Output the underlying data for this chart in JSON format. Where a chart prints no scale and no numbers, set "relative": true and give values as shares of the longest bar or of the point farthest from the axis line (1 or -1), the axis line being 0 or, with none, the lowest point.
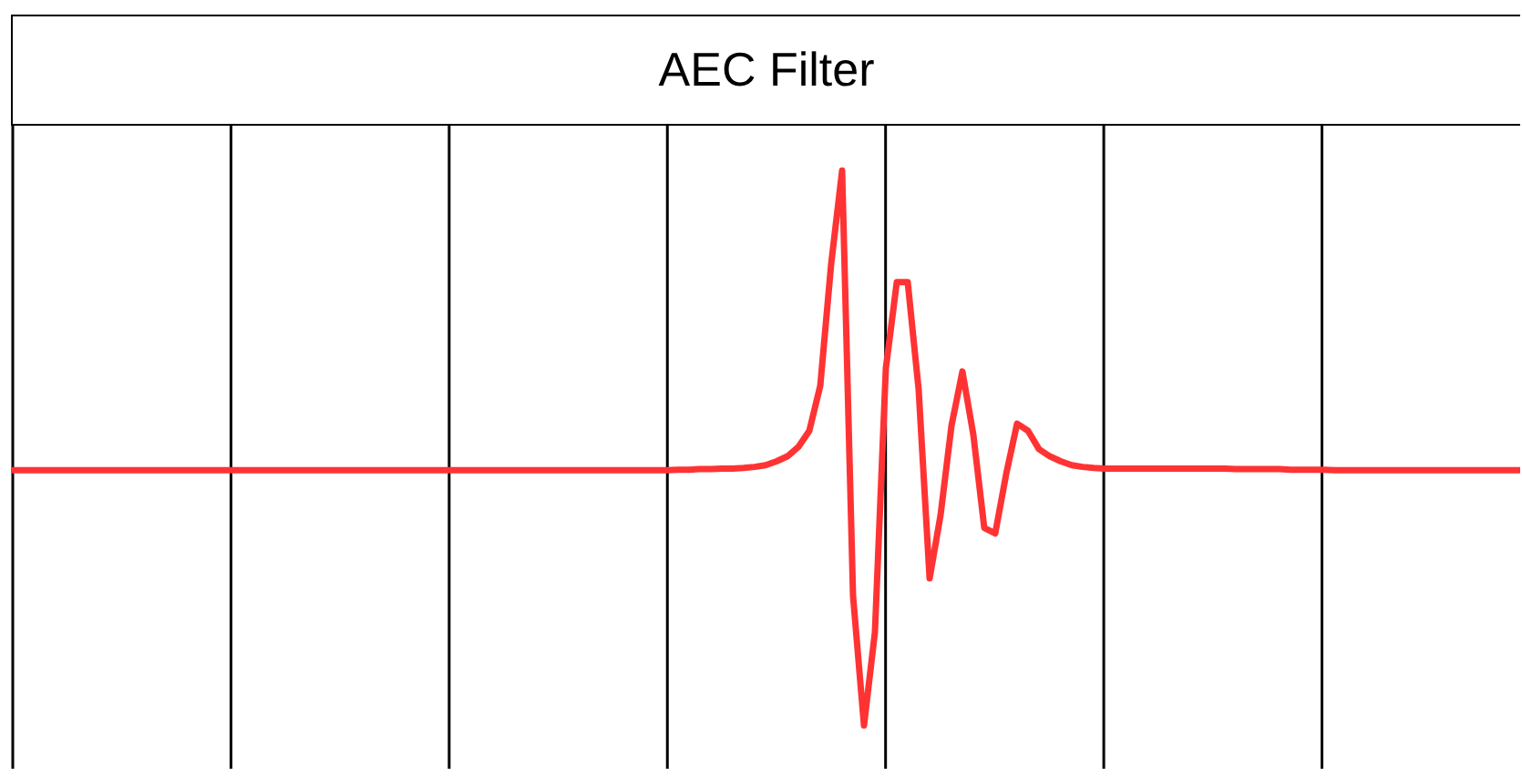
{
  "chart_data": {
    "type": "line",
    "title": "AEC Filter",
    "relative": true,
    "grid": "x",
    "legend": false,
    "marker": "none",
    "line_style": "solid",
    "categories": [
      null,
      null,
      null,
      null,
      null,
      null,
      null,
      null,
      null,
      null,
      null,
      null,
      null,
      null,
      null,
      null,
      null,
      null,
      null,
      null,
      null,
      null,
      null,
      null,
      null,
      null,
      null,
      null,
      null,
      null,
      null,
      null,
      null,
      null,
      null,
      null,
      null,
      null,
      null,
      null,
      null,
      null,
      null,
      null,
      null,
      null,
      null,
      null,
      null,
      null,
      null,
      null,
      null,
      null,
      null,
      null,
      null,
      null,
      null,
      null,
      null,
      null,
      null,
      null,
      null,
      null,
      null,
      null,
      null,
      null,
      null,
      null,
      null,
      null,
      null,
      null,
      null,
      null,
      null,
      null,
      null,
      null,
      null,
      null,
      null,
      null,
      null,
      null,
      null,
      null,
      null,
      null,
      null,
      null,
      null,
      null,
      null,
      null,
      null,
      null,
      null,
      null,
      null,
      null,
      null,
      null,
      null,
      null,
      null,
      null,
      null,
      null,
      null,
      null,
      null,
      null,
      null,
      null,
      null,
      null,
      null,
      null,
      null,
      null,
      null,
      null,
      null,
      null,
      null,
      null,
      null,
      null,
      null,
      null,
      null,
      null,
      null,
      null,
      null
    ],
    "series": [
      {
        "color": "#ff3333",
        "values": [
          0.46,
          0.46,
          0.46,
          0.46,
          0.46,
          0.46,
          0.46,
          0.46,
          0.46,
          0.46,
          0.46,
          0.46,
          0.46,
          0.46,
          0.46,
          0.46,
          0.46,
          0.46,
          0.46,
          0.46,
          0.46,
          0.46,
          0.46,
          0.46,
          0.46,
          0.46,
          0.46,
          0.46,
          0.46,
          0.46,
          0.46,
          0.46,
          0.46,
          0.46,
          0.46,
          0.46,
          0.46,
          0.46,
          0.46,
          0.46,
          0.46,
          0.46,
          0.46,
          0.46,
          0.46,
          0.46,
          0.46,
          0.46,
          0.46,
          0.46,
          0.46,
          0.46,
          0.46,
          0.46,
          0.46,
          0.46,
          0.46,
          0.46,
          0.46,
          0.46,
          0.46,
          0.461,
          0.461,
          0.462,
          0.462,
          0.463,
          0.463,
          0.464,
          0.466,
          0.469,
          0.476,
          0.485,
          0.502,
          0.531,
          0.612,
          0.832,
          1,
          0.233,
          0,
          0.168,
          0.644,
          0.799,
          0.799,
          0.605,
          0.265,
          0.379,
          0.54,
          0.638,
          0.524,
          0.356,
          0.346,
          0.453,
          0.544,
          0.531,
          0.498,
          0.485,
          0.476,
          0.469,
          0.466,
          0.464,
          0.463,
          0.463,
          0.463,
          0.463,
          0.463,
          0.463,
          0.463,
          0.463,
          0.463,
          0.463,
          0.463,
          0.463,
          0.462,
          0.462,
          0.462,
          0.462,
          0.462,
          0.461,
          0.461,
          0.461,
          0.461,
          0.46,
          0.46,
          0.46,
          0.46,
          0.46,
          0.46,
          0.46,
          0.46,
          0.46,
          0.46,
          0.46,
          0.46,
          0.46,
          0.46,
          0.46,
          0.46,
          0.46,
          0.46
        ]
      }
    ]
  }
}
